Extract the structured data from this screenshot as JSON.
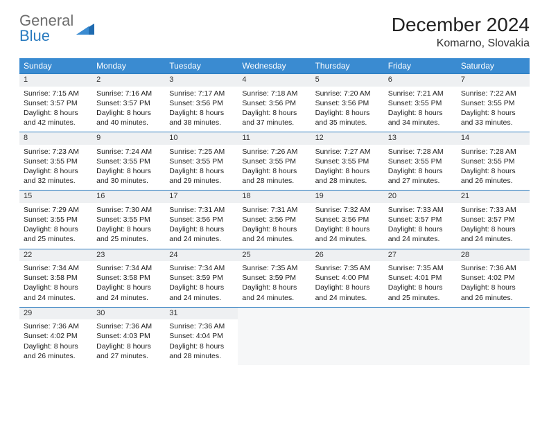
{
  "logo": {
    "general": "General",
    "blue": "Blue"
  },
  "title": "December 2024",
  "location": "Komarno, Slovakia",
  "colors": {
    "header_bg": "#3a8bd1",
    "header_text": "#ffffff",
    "daynum_bg": "#eef0f2",
    "row_border": "#2a7bbf",
    "logo_gray": "#6d6d6d",
    "logo_blue": "#2a7bbf"
  },
  "weekdays": [
    "Sunday",
    "Monday",
    "Tuesday",
    "Wednesday",
    "Thursday",
    "Friday",
    "Saturday"
  ],
  "weeks": [
    [
      {
        "n": 1,
        "sr": "7:15 AM",
        "ss": "3:57 PM",
        "dl": "8 hours and 42 minutes."
      },
      {
        "n": 2,
        "sr": "7:16 AM",
        "ss": "3:57 PM",
        "dl": "8 hours and 40 minutes."
      },
      {
        "n": 3,
        "sr": "7:17 AM",
        "ss": "3:56 PM",
        "dl": "8 hours and 38 minutes."
      },
      {
        "n": 4,
        "sr": "7:18 AM",
        "ss": "3:56 PM",
        "dl": "8 hours and 37 minutes."
      },
      {
        "n": 5,
        "sr": "7:20 AM",
        "ss": "3:56 PM",
        "dl": "8 hours and 35 minutes."
      },
      {
        "n": 6,
        "sr": "7:21 AM",
        "ss": "3:55 PM",
        "dl": "8 hours and 34 minutes."
      },
      {
        "n": 7,
        "sr": "7:22 AM",
        "ss": "3:55 PM",
        "dl": "8 hours and 33 minutes."
      }
    ],
    [
      {
        "n": 8,
        "sr": "7:23 AM",
        "ss": "3:55 PM",
        "dl": "8 hours and 32 minutes."
      },
      {
        "n": 9,
        "sr": "7:24 AM",
        "ss": "3:55 PM",
        "dl": "8 hours and 30 minutes."
      },
      {
        "n": 10,
        "sr": "7:25 AM",
        "ss": "3:55 PM",
        "dl": "8 hours and 29 minutes."
      },
      {
        "n": 11,
        "sr": "7:26 AM",
        "ss": "3:55 PM",
        "dl": "8 hours and 28 minutes."
      },
      {
        "n": 12,
        "sr": "7:27 AM",
        "ss": "3:55 PM",
        "dl": "8 hours and 28 minutes."
      },
      {
        "n": 13,
        "sr": "7:28 AM",
        "ss": "3:55 PM",
        "dl": "8 hours and 27 minutes."
      },
      {
        "n": 14,
        "sr": "7:28 AM",
        "ss": "3:55 PM",
        "dl": "8 hours and 26 minutes."
      }
    ],
    [
      {
        "n": 15,
        "sr": "7:29 AM",
        "ss": "3:55 PM",
        "dl": "8 hours and 25 minutes."
      },
      {
        "n": 16,
        "sr": "7:30 AM",
        "ss": "3:55 PM",
        "dl": "8 hours and 25 minutes."
      },
      {
        "n": 17,
        "sr": "7:31 AM",
        "ss": "3:56 PM",
        "dl": "8 hours and 24 minutes."
      },
      {
        "n": 18,
        "sr": "7:31 AM",
        "ss": "3:56 PM",
        "dl": "8 hours and 24 minutes."
      },
      {
        "n": 19,
        "sr": "7:32 AM",
        "ss": "3:56 PM",
        "dl": "8 hours and 24 minutes."
      },
      {
        "n": 20,
        "sr": "7:33 AM",
        "ss": "3:57 PM",
        "dl": "8 hours and 24 minutes."
      },
      {
        "n": 21,
        "sr": "7:33 AM",
        "ss": "3:57 PM",
        "dl": "8 hours and 24 minutes."
      }
    ],
    [
      {
        "n": 22,
        "sr": "7:34 AM",
        "ss": "3:58 PM",
        "dl": "8 hours and 24 minutes."
      },
      {
        "n": 23,
        "sr": "7:34 AM",
        "ss": "3:58 PM",
        "dl": "8 hours and 24 minutes."
      },
      {
        "n": 24,
        "sr": "7:34 AM",
        "ss": "3:59 PM",
        "dl": "8 hours and 24 minutes."
      },
      {
        "n": 25,
        "sr": "7:35 AM",
        "ss": "3:59 PM",
        "dl": "8 hours and 24 minutes."
      },
      {
        "n": 26,
        "sr": "7:35 AM",
        "ss": "4:00 PM",
        "dl": "8 hours and 24 minutes."
      },
      {
        "n": 27,
        "sr": "7:35 AM",
        "ss": "4:01 PM",
        "dl": "8 hours and 25 minutes."
      },
      {
        "n": 28,
        "sr": "7:36 AM",
        "ss": "4:02 PM",
        "dl": "8 hours and 26 minutes."
      }
    ],
    [
      {
        "n": 29,
        "sr": "7:36 AM",
        "ss": "4:02 PM",
        "dl": "8 hours and 26 minutes."
      },
      {
        "n": 30,
        "sr": "7:36 AM",
        "ss": "4:03 PM",
        "dl": "8 hours and 27 minutes."
      },
      {
        "n": 31,
        "sr": "7:36 AM",
        "ss": "4:04 PM",
        "dl": "8 hours and 28 minutes."
      },
      null,
      null,
      null,
      null
    ]
  ],
  "labels": {
    "sunrise": "Sunrise: ",
    "sunset": "Sunset: ",
    "daylight": "Daylight: "
  }
}
